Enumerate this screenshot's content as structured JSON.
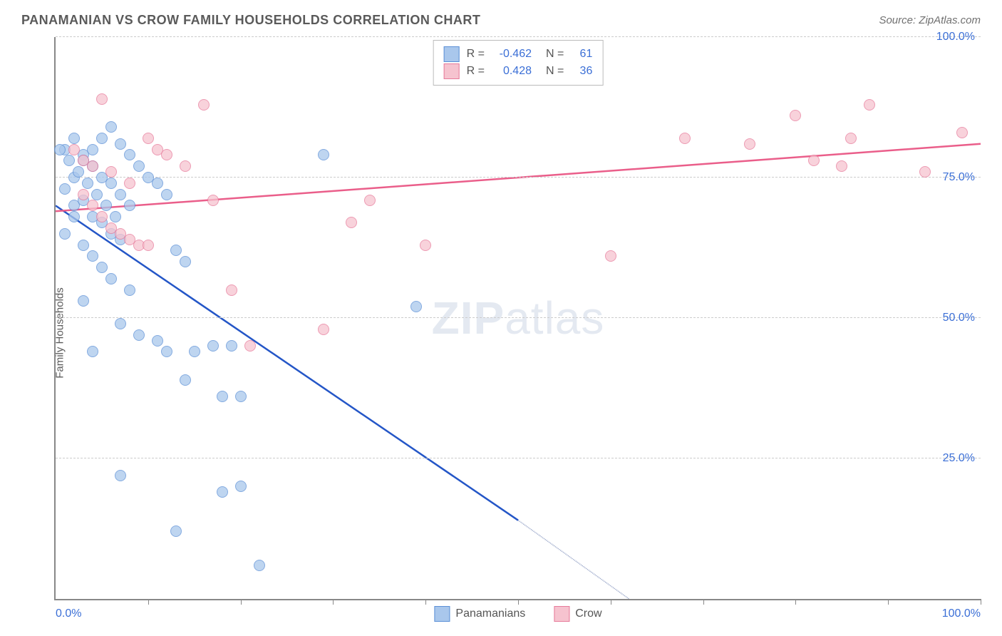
{
  "title": "PANAMANIAN VS CROW FAMILY HOUSEHOLDS CORRELATION CHART",
  "source_label": "Source: ZipAtlas.com",
  "y_axis_label": "Family Households",
  "watermark_bold": "ZIP",
  "watermark_rest": "atlas",
  "chart": {
    "type": "scatter",
    "xlim": [
      0,
      100
    ],
    "ylim": [
      0,
      100
    ],
    "y_ticks": [
      25,
      50,
      75,
      100
    ],
    "y_tick_labels": [
      "25.0%",
      "50.0%",
      "75.0%",
      "100.0%"
    ],
    "x_min_label": "0.0%",
    "x_max_label": "100.0%",
    "x_minor_ticks": [
      10,
      20,
      30,
      40,
      50,
      60,
      70,
      80,
      90,
      100
    ],
    "grid_color": "#cccccc",
    "axis_color": "#888888",
    "background_color": "#ffffff",
    "tick_label_color": "#3b6fd6",
    "point_radius": 8,
    "series": [
      {
        "name": "Panamanians",
        "fill_color": "#a9c7ec",
        "stroke_color": "#5b8fd6",
        "line_color": "#2456c7",
        "legend_R": "-0.462",
        "legend_N": "61",
        "trend": {
          "x1": 0,
          "y1": 70,
          "x2": 50,
          "y2": 14,
          "dash_x2": 62,
          "dash_y2": 0
        },
        "points": [
          [
            1,
            80
          ],
          [
            2,
            82
          ],
          [
            3,
            79
          ],
          [
            4,
            77
          ],
          [
            5,
            75
          ],
          [
            6,
            74
          ],
          [
            7,
            72
          ],
          [
            8,
            70
          ],
          [
            2,
            70
          ],
          [
            3,
            71
          ],
          [
            4,
            68
          ],
          [
            5,
            67
          ],
          [
            6,
            65
          ],
          [
            7,
            64
          ],
          [
            1,
            73
          ],
          [
            2,
            75
          ],
          [
            3,
            78
          ],
          [
            4,
            80
          ],
          [
            5,
            82
          ],
          [
            6,
            84
          ],
          [
            7,
            81
          ],
          [
            8,
            79
          ],
          [
            9,
            77
          ],
          [
            10,
            75
          ],
          [
            11,
            74
          ],
          [
            12,
            72
          ],
          [
            13,
            62
          ],
          [
            14,
            60
          ],
          [
            3,
            63
          ],
          [
            4,
            61
          ],
          [
            5,
            59
          ],
          [
            6,
            57
          ],
          [
            8,
            55
          ],
          [
            3,
            53
          ],
          [
            4,
            44
          ],
          [
            7,
            49
          ],
          [
            9,
            47
          ],
          [
            11,
            46
          ],
          [
            12,
            44
          ],
          [
            15,
            44
          ],
          [
            17,
            45
          ],
          [
            19,
            45
          ],
          [
            14,
            39
          ],
          [
            18,
            36
          ],
          [
            20,
            36
          ],
          [
            7,
            22
          ],
          [
            13,
            12
          ],
          [
            18,
            19
          ],
          [
            20,
            20
          ],
          [
            22,
            6
          ],
          [
            29,
            79
          ],
          [
            39,
            52
          ],
          [
            0.5,
            80
          ],
          [
            1.5,
            78
          ],
          [
            2.5,
            76
          ],
          [
            3.5,
            74
          ],
          [
            4.5,
            72
          ],
          [
            5.5,
            70
          ],
          [
            6.5,
            68
          ],
          [
            1,
            65
          ],
          [
            2,
            68
          ]
        ]
      },
      {
        "name": "Crow",
        "fill_color": "#f6c3cf",
        "stroke_color": "#e77a9a",
        "line_color": "#ea5e8a",
        "legend_R": "0.428",
        "legend_N": "36",
        "trend": {
          "x1": 0,
          "y1": 69,
          "x2": 100,
          "y2": 81
        },
        "points": [
          [
            5,
            89
          ],
          [
            16,
            88
          ],
          [
            2,
            80
          ],
          [
            3,
            78
          ],
          [
            4,
            77
          ],
          [
            6,
            76
          ],
          [
            8,
            74
          ],
          [
            10,
            82
          ],
          [
            11,
            80
          ],
          [
            12,
            79
          ],
          [
            3,
            72
          ],
          [
            4,
            70
          ],
          [
            5,
            68
          ],
          [
            6,
            66
          ],
          [
            7,
            65
          ],
          [
            8,
            64
          ],
          [
            9,
            63
          ],
          [
            10,
            63
          ],
          [
            14,
            77
          ],
          [
            17,
            71
          ],
          [
            19,
            55
          ],
          [
            21,
            45
          ],
          [
            29,
            48
          ],
          [
            32,
            67
          ],
          [
            34,
            71
          ],
          [
            40,
            63
          ],
          [
            60,
            61
          ],
          [
            68,
            82
          ],
          [
            75,
            81
          ],
          [
            80,
            86
          ],
          [
            82,
            78
          ],
          [
            85,
            77
          ],
          [
            86,
            82
          ],
          [
            88,
            88
          ],
          [
            94,
            76
          ],
          [
            98,
            83
          ]
        ]
      }
    ]
  },
  "legend_bottom": [
    {
      "label": "Panamanians",
      "fill": "#a9c7ec",
      "stroke": "#5b8fd6"
    },
    {
      "label": "Crow",
      "fill": "#f6c3cf",
      "stroke": "#e77a9a"
    }
  ]
}
